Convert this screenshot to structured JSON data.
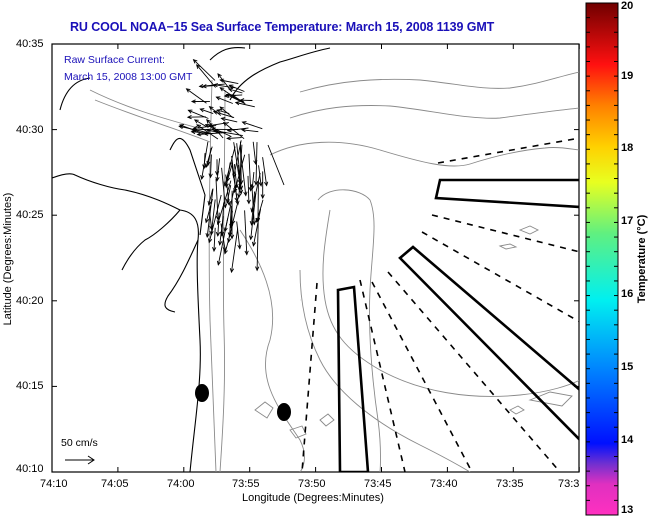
{
  "title": "RU COOL  NOAA−15  Sea Surface Temperature:  March 15, 2008 1139 GMT",
  "annotation": {
    "line1": "Raw Surface Current:",
    "line2": "March 15, 2008 13:00 GMT"
  },
  "scale_arrow": {
    "label": "50 cm/s",
    "icon": "arrow-right-icon"
  },
  "axes": {
    "ylabel": "Latitude (Degrees:Minutes)",
    "xlabel": "Longitude (Degrees:Minutes)",
    "yticks": [
      "40:35",
      "40:30",
      "40:25",
      "40:20",
      "40:15",
      "40:10"
    ],
    "xticks": [
      "74:10",
      "74:05",
      "74:00",
      "73:55",
      "73:50",
      "73:45",
      "73:40",
      "73:35",
      "73:3"
    ]
  },
  "colorbar": {
    "title": "Temperature (°C)",
    "ticks": [
      "20",
      "19",
      "18",
      "17",
      "16",
      "15",
      "14",
      "13"
    ],
    "range": [
      13,
      20
    ],
    "colors": [
      "#ff20b0",
      "#9030d0",
      "#0010ff",
      "#0090ff",
      "#00e8ff",
      "#60f090",
      "#e8ff20",
      "#ffa000",
      "#ff1010",
      "#700000"
    ]
  },
  "markers": {
    "buoys": 2,
    "outlined_boxes": 3,
    "dashed_radials": 8
  }
}
